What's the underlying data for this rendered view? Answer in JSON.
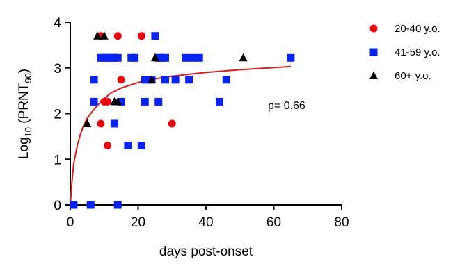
{
  "chart_data": {
    "type": "scatter",
    "title": "",
    "xlabel": "days post-onset",
    "ylabel": {
      "prefix": "Log",
      "sub1": "10",
      "mid": " (PRNT",
      "sub2": "90",
      "suffix": ")"
    },
    "xlim": [
      0,
      80
    ],
    "ylim": [
      0,
      4
    ],
    "xticks": [
      0,
      20,
      40,
      60,
      80
    ],
    "yticks": [
      0,
      1,
      2,
      3,
      4
    ],
    "grid": false,
    "legend_position": "right",
    "annotation": "p= 0.66",
    "series": [
      {
        "name": "20-40 y.o.",
        "marker": "circle",
        "color": "#e8000b",
        "points": [
          [
            6,
            0
          ],
          [
            9,
            1.78
          ],
          [
            9,
            3.7
          ],
          [
            10,
            2.26
          ],
          [
            11,
            1.3
          ],
          [
            11,
            2.26
          ],
          [
            14,
            3.7
          ],
          [
            15,
            2.74
          ],
          [
            21,
            1.3
          ],
          [
            21,
            3.7
          ],
          [
            30,
            1.78
          ],
          [
            34,
            3.22
          ]
        ]
      },
      {
        "name": "41-59 y.o.",
        "marker": "square",
        "color": "#0a24f0",
        "points": [
          [
            1,
            0
          ],
          [
            6,
            0
          ],
          [
            7,
            2.26
          ],
          [
            7,
            2.74
          ],
          [
            9,
            3.22
          ],
          [
            10,
            3.22
          ],
          [
            11,
            3.22
          ],
          [
            12,
            3.22
          ],
          [
            13,
            3.22
          ],
          [
            13,
            1.78
          ],
          [
            14,
            3.22
          ],
          [
            14,
            0
          ],
          [
            15,
            2.26
          ],
          [
            17,
            1.3
          ],
          [
            18,
            3.22
          ],
          [
            19,
            3.22
          ],
          [
            21,
            1.3
          ],
          [
            22,
            2.74
          ],
          [
            22,
            2.26
          ],
          [
            23,
            2.74
          ],
          [
            24,
            2.74
          ],
          [
            25,
            3.7
          ],
          [
            26,
            3.22
          ],
          [
            26,
            2.26
          ],
          [
            27,
            3.22
          ],
          [
            28,
            3.22
          ],
          [
            28,
            2.74
          ],
          [
            31,
            2.74
          ],
          [
            34,
            3.22
          ],
          [
            35,
            2.74
          ],
          [
            36,
            3.22
          ],
          [
            38,
            3.22
          ],
          [
            44,
            2.26
          ],
          [
            46,
            2.74
          ],
          [
            65,
            3.22
          ]
        ]
      },
      {
        "name": "60+ y.o.",
        "marker": "triangle",
        "color": "#000000",
        "points": [
          [
            5,
            1.78
          ],
          [
            8,
            3.7
          ],
          [
            10,
            3.7
          ],
          [
            13,
            2.26
          ],
          [
            14,
            2.26
          ],
          [
            24,
            2.74
          ],
          [
            25,
            3.22
          ],
          [
            51,
            3.22
          ]
        ]
      }
    ],
    "fit_line": {
      "color": "#e31a1c",
      "points": [
        [
          0,
          0
        ],
        [
          0.5,
          0.5
        ],
        [
          1,
          0.9
        ],
        [
          2,
          1.28
        ],
        [
          3,
          1.55
        ],
        [
          4,
          1.75
        ],
        [
          5,
          1.9
        ],
        [
          6,
          2.0
        ],
        [
          8,
          2.18
        ],
        [
          10,
          2.33
        ],
        [
          12,
          2.45
        ],
        [
          15,
          2.56
        ],
        [
          20,
          2.68
        ],
        [
          25,
          2.76
        ],
        [
          30,
          2.82
        ],
        [
          40,
          2.9
        ],
        [
          50,
          2.96
        ],
        [
          65,
          3.03
        ]
      ]
    }
  }
}
